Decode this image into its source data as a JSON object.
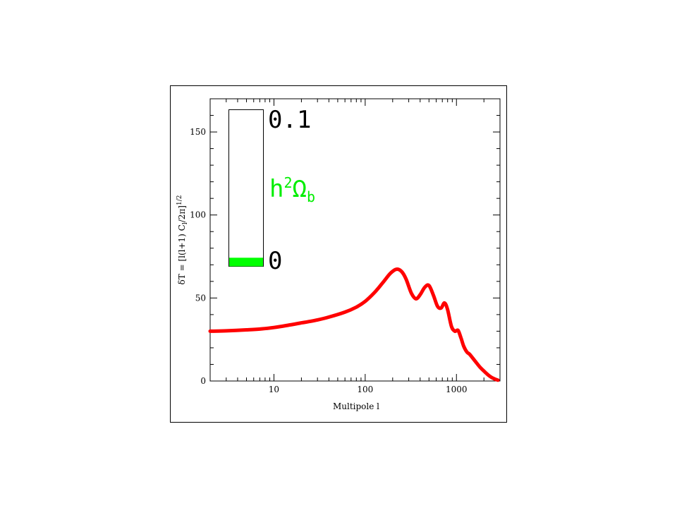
{
  "chart_data": {
    "type": "line",
    "xscale": "log",
    "xlim": [
      2,
      3000
    ],
    "ylim": [
      0,
      170
    ],
    "xlabel": "Multipole l",
    "ylabel": "δT = [l(l+1) C_l/2π]^{1/2}",
    "ylabel_parts": {
      "main": "δT = [l(l+1) C",
      "sub": "l",
      "mid": "/2π]",
      "sup": "1/2"
    },
    "x_ticks": [
      {
        "value": 10,
        "label": "10"
      },
      {
        "value": 100,
        "label": "100"
      },
      {
        "value": 1000,
        "label": "1000"
      }
    ],
    "y_ticks": [
      {
        "value": 0,
        "label": "0"
      },
      {
        "value": 50,
        "label": "50"
      },
      {
        "value": 100,
        "label": "100"
      },
      {
        "value": 150,
        "label": "150"
      }
    ],
    "series": [
      {
        "color": "#ff0000",
        "x": [
          2,
          3,
          5,
          7,
          10,
          15,
          20,
          30,
          40,
          60,
          80,
          100,
          130,
          160,
          190,
          220,
          250,
          280,
          320,
          360,
          400,
          450,
          500,
          560,
          620,
          680,
          740,
          800,
          880,
          960,
          1040,
          1120,
          1200,
          1300,
          1400,
          1600,
          1800,
          2000,
          2300,
          2600,
          2850
        ],
        "y": [
          30,
          30.2,
          30.8,
          31.3,
          32.2,
          33.8,
          35,
          36.8,
          38.5,
          41.5,
          44.5,
          48,
          54,
          60,
          65,
          67.3,
          66,
          61.5,
          53,
          49.5,
          52,
          56.5,
          57.5,
          51.5,
          45,
          44,
          47,
          43,
          33,
          30,
          30.5,
          26,
          21,
          17.5,
          16,
          12,
          8.5,
          6,
          3,
          1.3,
          0.5
        ]
      }
    ],
    "inset": {
      "top_label": "0.1",
      "param_label": {
        "base": "h",
        "sup": "2",
        "omega": "Ω",
        "sub": "b"
      },
      "bottom_label": "0",
      "value_fraction": 0.055,
      "fill_color": "#00ff00",
      "label_color": "#00ee00"
    }
  }
}
